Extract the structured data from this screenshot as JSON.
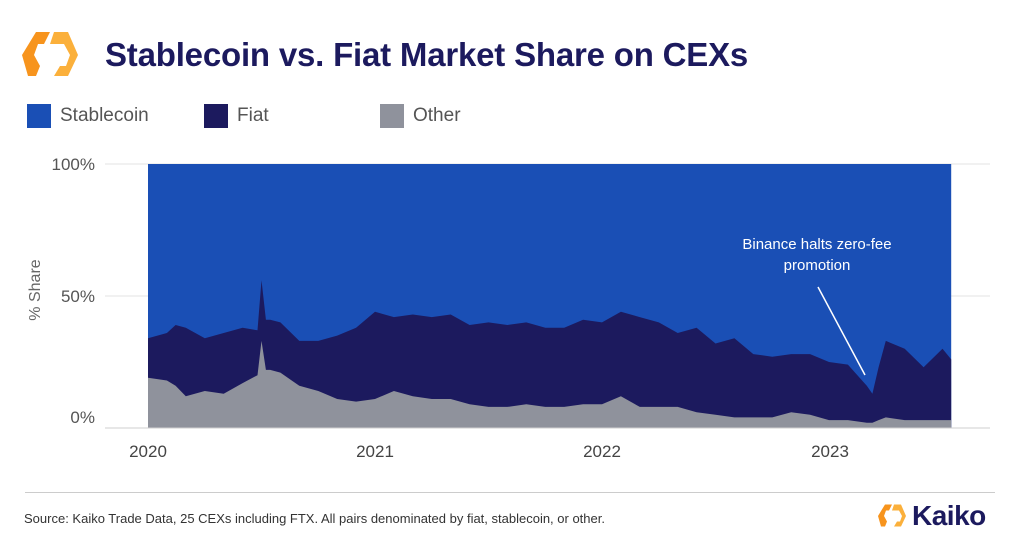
{
  "header": {
    "title": "Stablecoin vs. Fiat Market Share on CEXs",
    "logo": "kaiko-hexagon-logo"
  },
  "footer": {
    "source": "Source: Kaiko Trade Data, 25 CEXs including FTX. All pairs denominated by fiat, stablecoin, or other.",
    "brand": "Kaiko"
  },
  "colors": {
    "stablecoin": "#1a4fb5",
    "fiat": "#1c1a5e",
    "other": "#8f929c",
    "brand_orange": "#f7941d"
  },
  "chart_data": {
    "type": "area",
    "stacked": "percent",
    "title": "Stablecoin vs. Fiat Market Share on CEXs",
    "ylabel": "% Share",
    "xlabel": "",
    "ylim": [
      0,
      100
    ],
    "yticks": [
      "0%",
      "50%",
      "100%"
    ],
    "xticks": [
      "2020",
      "2021",
      "2022",
      "2023"
    ],
    "grid": true,
    "legend": "top-left",
    "legend_entries": [
      "Stablecoin",
      "Fiat",
      "Other"
    ],
    "annotation": {
      "text_line1": "Binance halts zero-fee",
      "text_line2": "promotion",
      "date": "2023-03-10"
    },
    "dates": [
      "2020-01-01",
      "2020-02-01",
      "2020-02-15",
      "2020-03-01",
      "2020-04-01",
      "2020-05-01",
      "2020-06-01",
      "2020-06-25",
      "2020-07-01",
      "2020-07-08",
      "2020-07-15",
      "2020-08-01",
      "2020-09-01",
      "2020-10-01",
      "2020-11-01",
      "2020-12-01",
      "2021-01-01",
      "2021-02-01",
      "2021-03-01",
      "2021-04-01",
      "2021-05-01",
      "2021-06-01",
      "2021-07-01",
      "2021-08-01",
      "2021-09-01",
      "2021-10-01",
      "2021-11-01",
      "2021-12-01",
      "2022-01-01",
      "2022-02-01",
      "2022-03-01",
      "2022-04-01",
      "2022-05-01",
      "2022-06-01",
      "2022-07-01",
      "2022-08-01",
      "2022-09-01",
      "2022-10-01",
      "2022-11-01",
      "2022-12-01",
      "2023-01-01",
      "2023-02-01",
      "2023-03-01",
      "2023-03-10",
      "2023-03-20",
      "2023-04-01",
      "2023-05-01",
      "2023-06-01",
      "2023-07-01",
      "2023-07-15"
    ],
    "series": [
      {
        "name": "Other",
        "values": [
          19,
          18,
          16,
          12,
          14,
          13,
          17,
          20,
          33,
          22,
          22,
          21,
          16,
          14,
          11,
          10,
          11,
          14,
          12,
          11,
          11,
          9,
          8,
          8,
          9,
          8,
          8,
          9,
          9,
          12,
          8,
          8,
          8,
          6,
          5,
          4,
          4,
          4,
          6,
          5,
          3,
          3,
          2,
          2,
          3,
          4,
          3,
          3,
          3,
          3
        ]
      },
      {
        "name": "Fiat",
        "values": [
          15,
          18,
          23,
          26,
          20,
          23,
          21,
          17,
          23,
          19,
          19,
          19,
          17,
          19,
          24,
          28,
          33,
          28,
          31,
          31,
          32,
          30,
          32,
          31,
          31,
          30,
          30,
          32,
          31,
          32,
          34,
          32,
          28,
          32,
          27,
          30,
          24,
          23,
          22,
          23,
          22,
          21,
          14,
          11,
          20,
          29,
          27,
          20,
          27,
          23
        ]
      },
      {
        "name": "Stablecoin",
        "values": [
          66,
          64,
          61,
          62,
          66,
          64,
          62,
          63,
          44,
          59,
          59,
          60,
          67,
          67,
          65,
          62,
          56,
          58,
          57,
          58,
          57,
          61,
          60,
          61,
          60,
          62,
          62,
          59,
          60,
          56,
          58,
          60,
          64,
          62,
          68,
          66,
          72,
          73,
          72,
          72,
          75,
          76,
          84,
          87,
          77,
          67,
          70,
          77,
          70,
          74
        ]
      }
    ]
  }
}
